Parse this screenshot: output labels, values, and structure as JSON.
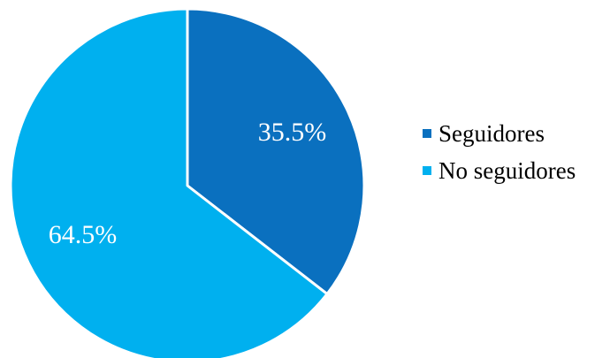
{
  "chart_data": {
    "type": "pie",
    "categories": [
      "Seguidores",
      "No seguidores"
    ],
    "values": [
      35.5,
      64.5
    ],
    "labels": [
      "35.5%",
      "64.5%"
    ],
    "colors": [
      "#0a70bf",
      "#00b0ef"
    ],
    "start_angle": "12 o'clock",
    "direction": "clockwise",
    "legend_position": "right"
  }
}
